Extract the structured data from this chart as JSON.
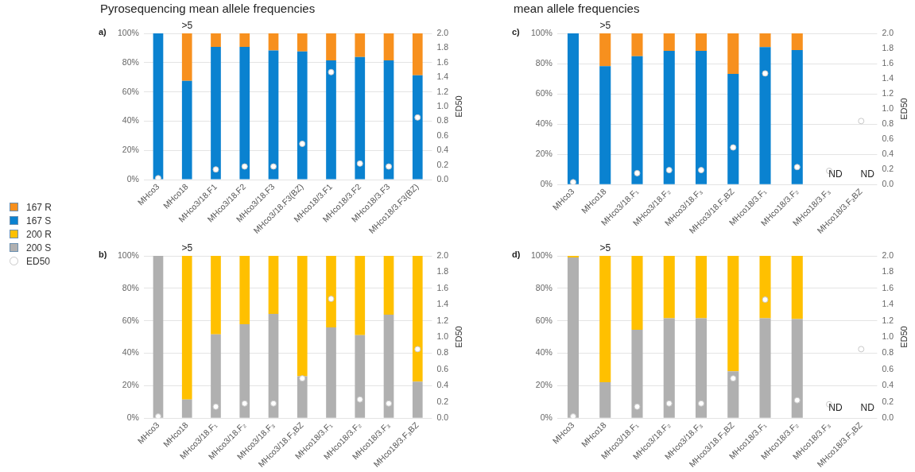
{
  "chart_data": [
    {
      "type": "bar",
      "title": "Pyrosequencing mean allele frequencies",
      "stacked": true,
      "legend": "left",
      "grid": "y",
      "marker": "circle",
      "y2label": "ED50",
      "categories": [
        "MHco3",
        "MHco18",
        "MHco3/18.F1",
        "MHco3/18.F2",
        "MHco3/18.F3",
        "MHco3/18.F3(BZ)",
        "MHco18/3.F1",
        "MHco18/3.F2",
        "MHco18/3.F3",
        "MHco18/3.F3(BZ)"
      ],
      "series": [
        {
          "name": "167 S",
          "color": "#0a82d0",
          "values": [
            100,
            67.5,
            90.7,
            90.7,
            88.3,
            87.7,
            81.5,
            83.9,
            81.5,
            71.4
          ]
        },
        {
          "name": "167 R",
          "color": "#f7901e",
          "values": [
            0,
            32.5,
            9.3,
            9.3,
            11.7,
            12.3,
            18.5,
            16.1,
            18.5,
            28.6
          ]
        },
        {
          "name": "ED50",
          "type": "scatter",
          "axis": "y2",
          "color": "#ffffff",
          "values": [
            0.02,
            null,
            0.14,
            0.18,
            0.18,
            0.49,
            1.47,
            0.22,
            0.18,
            0.85
          ]
        }
      ],
      "ylim": [
        0,
        100
      ],
      "yticks": [
        {
          "value": 0,
          "label": "0%"
        },
        {
          "value": 20,
          "label": "20%"
        },
        {
          "value": 40,
          "label": "40%"
        },
        {
          "value": 60,
          "label": "60%"
        },
        {
          "value": 80,
          "label": "80%"
        },
        {
          "value": 100,
          "label": "100%"
        }
      ],
      "y2lim": [
        0,
        2
      ],
      "y2ticks": [
        {
          "value": 0,
          "label": "0.0"
        },
        {
          "value": 0.2,
          "label": "0.2"
        },
        {
          "value": 0.4,
          "label": "0.4"
        },
        {
          "value": 0.6,
          "label": "0.6"
        },
        {
          "value": 0.8,
          "label": "0.8"
        },
        {
          "value": 1,
          "label": "1.0"
        },
        {
          "value": 1.2,
          "label": "1.2"
        },
        {
          "value": 1.4,
          "label": "1.4"
        },
        {
          "value": 1.6,
          "label": "1.6"
        },
        {
          "value": 1.8,
          "label": "1.8"
        },
        {
          "value": 2,
          "label": "2.0"
        }
      ],
      "annotations": [
        "a)",
        ">5"
      ]
    },
    {
      "type": "bar",
      "stacked": true,
      "legend": "left",
      "grid": "y",
      "marker": "circle",
      "y2label": "ED50",
      "categories": [
        "MHco3",
        "MHco18",
        "MHco3/18.F₁",
        "MHco3/18.F₂",
        "MHco3/18.F₃",
        "MHco3/18.F₃BZ",
        "MHco18/3.F₁",
        "MHco18/3.F₂",
        "MHco18/3.F₃",
        "MHco18/3.F₃BZ"
      ],
      "series": [
        {
          "name": "200 S",
          "color": "#b0b0b0",
          "values": [
            100,
            11.5,
            51.6,
            57.9,
            64.3,
            25.8,
            55.9,
            51.1,
            63.7,
            22.5
          ]
        },
        {
          "name": "200 R",
          "color": "#ffc000",
          "values": [
            0,
            88.5,
            48.4,
            42.1,
            35.7,
            74.2,
            44.1,
            48.9,
            36.3,
            77.5
          ]
        },
        {
          "type": "scatter",
          "axis": "y2",
          "color": "#ffffff",
          "values": [
            0.02,
            null,
            0.14,
            0.18,
            0.18,
            0.49,
            1.47,
            0.23,
            0.18,
            0.85
          ]
        }
      ],
      "ylim": [
        0,
        100
      ],
      "yticks": [
        {
          "value": 0,
          "label": "0%"
        },
        {
          "value": 20,
          "label": "20%"
        },
        {
          "value": 40,
          "label": "40%"
        },
        {
          "value": 60,
          "label": "60%"
        },
        {
          "value": 80,
          "label": "80%"
        },
        {
          "value": 100,
          "label": "100%"
        }
      ],
      "y2lim": [
        0,
        2
      ],
      "y2ticks": [
        {
          "value": 0,
          "label": "0.0"
        },
        {
          "value": 0.2,
          "label": "0.2"
        },
        {
          "value": 0.4,
          "label": "0.4"
        },
        {
          "value": 0.6,
          "label": "0.6"
        },
        {
          "value": 0.8,
          "label": "0.8"
        },
        {
          "value": 1,
          "label": "1.0"
        },
        {
          "value": 1.2,
          "label": "1.2"
        },
        {
          "value": 1.4,
          "label": "1.4"
        },
        {
          "value": 1.6,
          "label": "1.6"
        },
        {
          "value": 1.8,
          "label": "1.8"
        },
        {
          "value": 2,
          "label": "2.0"
        }
      ],
      "annotations": [
        "b)",
        ">5"
      ]
    },
    {
      "type": "bar",
      "title": "mean allele frequencies",
      "stacked": true,
      "grid": "y",
      "marker": "circle",
      "y2label": "ED50",
      "categories": [
        "MHco3",
        "MHco18",
        "MHco3/18.F₁",
        "MHco3/18.F₂",
        "MHco3/18.F₃",
        "MHco3/18.F₃BZ",
        "MHco18/3.F₁",
        "MHco18/3.F₂",
        "MHco18/3.F₃",
        "MHco18/3.F₃BZ"
      ],
      "series": [
        {
          "color": "#0a82d0",
          "values": [
            100,
            78.3,
            84.9,
            88.4,
            88.4,
            73.2,
            90.9,
            89.0,
            null,
            null
          ]
        },
        {
          "color": "#f7901e",
          "values": [
            0,
            21.7,
            15.1,
            11.6,
            11.6,
            26.8,
            9.1,
            11.0,
            null,
            null
          ]
        },
        {
          "type": "scatter",
          "axis": "y2",
          "color": "#ffffff",
          "values": [
            0.03,
            null,
            0.15,
            0.19,
            0.19,
            0.49,
            1.47,
            0.23,
            0.18,
            0.84
          ]
        }
      ],
      "ylim": [
        0,
        100
      ],
      "yticks": [
        {
          "value": 0,
          "label": "0%"
        },
        {
          "value": 20,
          "label": "20%"
        },
        {
          "value": 40,
          "label": "40%"
        },
        {
          "value": 60,
          "label": "60%"
        },
        {
          "value": 80,
          "label": "80%"
        },
        {
          "value": 100,
          "label": "100%"
        }
      ],
      "y2lim": [
        0,
        2
      ],
      "y2ticks": [
        {
          "value": 0,
          "label": "0.0"
        },
        {
          "value": 0.2,
          "label": "0.2"
        },
        {
          "value": 0.4,
          "label": "0.4"
        },
        {
          "value": 0.6,
          "label": "0.6"
        },
        {
          "value": 0.8,
          "label": "0.8"
        },
        {
          "value": 1,
          "label": "1.0"
        },
        {
          "value": 1.2,
          "label": "1.2"
        },
        {
          "value": 1.4,
          "label": "1.4"
        },
        {
          "value": 1.6,
          "label": "1.6"
        },
        {
          "value": 1.8,
          "label": "1.8"
        },
        {
          "value": 2,
          "label": "2.0"
        }
      ],
      "annotations": [
        "c)",
        ">5",
        "ND",
        "ND"
      ]
    },
    {
      "type": "bar",
      "stacked": true,
      "grid": "y",
      "marker": "circle",
      "y2label": "ED50",
      "categories": [
        "MHco3",
        "MHco18",
        "MHco3/18.F₁",
        "MHco3/18.F₂",
        "MHco3/18.F₃",
        "MHco3/18.F₃BZ",
        "MHco18/3.F₁",
        "MHco18/3.F₂",
        "MHco18/3.F₃",
        "MHco18/3.F₃BZ"
      ],
      "series": [
        {
          "color": "#b0b0b0",
          "values": [
            99,
            22.1,
            54.4,
            61.6,
            61.6,
            28.8,
            61.6,
            61.0,
            null,
            null
          ]
        },
        {
          "color": "#ffc000",
          "values": [
            1,
            77.9,
            45.6,
            38.4,
            38.4,
            71.2,
            38.4,
            39.0,
            null,
            null
          ]
        },
        {
          "type": "scatter",
          "axis": "y2",
          "color": "#ffffff",
          "values": [
            0.02,
            null,
            0.14,
            0.18,
            0.18,
            0.49,
            1.46,
            0.22,
            0.17,
            0.85
          ]
        }
      ],
      "ylim": [
        0,
        100
      ],
      "yticks": [
        {
          "value": 0,
          "label": "0%"
        },
        {
          "value": 20,
          "label": "20%"
        },
        {
          "value": 40,
          "label": "40%"
        },
        {
          "value": 60,
          "label": "60%"
        },
        {
          "value": 80,
          "label": "80%"
        },
        {
          "value": 100,
          "label": "100%"
        }
      ],
      "y2lim": [
        0,
        2
      ],
      "y2ticks": [
        {
          "value": 0,
          "label": "0.0"
        },
        {
          "value": 0.2,
          "label": "0.2"
        },
        {
          "value": 0.4,
          "label": "0.4"
        },
        {
          "value": 0.6,
          "label": "0.6"
        },
        {
          "value": 0.8,
          "label": "0.8"
        },
        {
          "value": 1,
          "label": "1.0"
        },
        {
          "value": 1.2,
          "label": "1.2"
        },
        {
          "value": 1.4,
          "label": "1.4"
        },
        {
          "value": 1.6,
          "label": "1.6"
        },
        {
          "value": 1.8,
          "label": "1.8"
        },
        {
          "value": 2,
          "label": "2.0"
        }
      ],
      "annotations": [
        "d)",
        ">5",
        "ND",
        "ND"
      ]
    }
  ]
}
